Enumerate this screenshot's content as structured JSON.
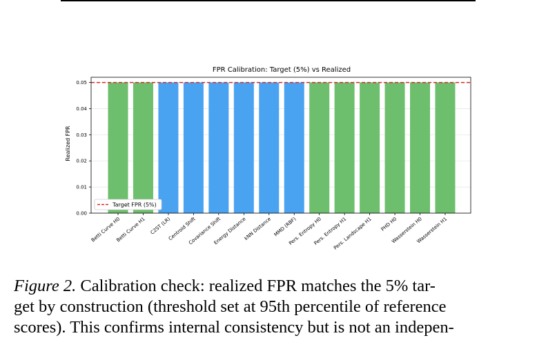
{
  "figure": {
    "caption_label": "Figure 2.",
    "caption_lines": [
      "Calibration check: realized FPR matches the 5% tar-",
      "get by construction (threshold set at 95th percentile of reference",
      "scores). This confirms internal consistency but is not an indepen-"
    ]
  },
  "chart_data": {
    "type": "bar",
    "title": "FPR Calibration: Target (5%) vs Realized",
    "xlabel": "",
    "ylabel": "Realized FPR",
    "ylim": [
      0,
      0.052
    ],
    "yticks": [
      "0.00",
      "0.01",
      "0.02",
      "0.03",
      "0.04",
      "0.05"
    ],
    "grid": true,
    "legend_position": "lower-left",
    "categories": [
      "Betti Curve H0",
      "Betti Curve H1",
      "C2ST (LR)",
      "Centroid Shift",
      "Covariance Shift",
      "Energy Distance",
      "kNN Distance",
      "MMD (RBF)",
      "Pers. Entropy H0",
      "Pers. Entropy H1",
      "Pers. Landscape H1",
      "PHD H0",
      "Wasserstein H0",
      "Wasserstein H1"
    ],
    "values": [
      0.05,
      0.05,
      0.05,
      0.05,
      0.05,
      0.05,
      0.05,
      0.05,
      0.05,
      0.05,
      0.05,
      0.05,
      0.05,
      0.05
    ],
    "bar_groups": [
      "green",
      "green",
      "blue",
      "blue",
      "blue",
      "blue",
      "blue",
      "blue",
      "green",
      "green",
      "green",
      "green",
      "green",
      "green"
    ],
    "reference_line": {
      "value": 0.05,
      "label": "Target FPR (5%)",
      "color": "#d62728",
      "style": "dashed"
    },
    "colors": {
      "green": "#6dbf6d",
      "blue": "#4aa3f0"
    }
  }
}
